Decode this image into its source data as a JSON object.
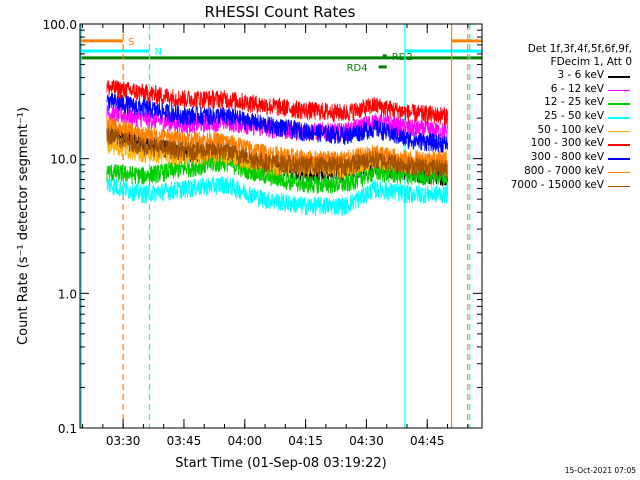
{
  "chart_data": {
    "type": "line",
    "title": "RHESSI Count Rates",
    "xlabel": "Start Time (01-Sep-08 03:19:22)",
    "ylabel": "Count Rate (s⁻¹ detector segment⁻¹)",
    "yscale": "log",
    "xlim": [
      "03:19:22",
      "04:58:30"
    ],
    "ylim": [
      0.1,
      100
    ],
    "x_ticks": [
      "03:30",
      "03:45",
      "04:00",
      "04:15",
      "04:30",
      "04:45"
    ],
    "y_ticks": [
      "0.1",
      "1.0",
      "10.0",
      "100.0"
    ],
    "data_start": "03:26:00",
    "data_end": "04:50:00",
    "series": [
      {
        "name": "3 - 6 keV",
        "color": "#000000",
        "points": [
          [
            "03:26",
            16
          ],
          [
            "03:35",
            13
          ],
          [
            "03:45",
            11
          ],
          [
            "03:55",
            11
          ],
          [
            "04:05",
            9
          ],
          [
            "04:15",
            8
          ],
          [
            "04:25",
            8
          ],
          [
            "04:32",
            9
          ],
          [
            "04:40",
            8
          ],
          [
            "04:49",
            7.5
          ]
        ]
      },
      {
        "name": "6 - 12 keV",
        "color": "#ff00ff",
        "points": [
          [
            "03:26",
            22
          ],
          [
            "03:35",
            20
          ],
          [
            "03:45",
            18
          ],
          [
            "03:55",
            19
          ],
          [
            "04:05",
            17
          ],
          [
            "04:15",
            16
          ],
          [
            "04:25",
            16
          ],
          [
            "04:32",
            19
          ],
          [
            "04:40",
            17
          ],
          [
            "04:49",
            16
          ]
        ]
      },
      {
        "name": "12 - 25 keV",
        "color": "#00cc00",
        "points": [
          [
            "03:26",
            8
          ],
          [
            "03:35",
            7.5
          ],
          [
            "03:45",
            8.5
          ],
          [
            "03:55",
            9.5
          ],
          [
            "04:05",
            7.5
          ],
          [
            "04:15",
            6.5
          ],
          [
            "04:25",
            6.5
          ],
          [
            "04:32",
            8
          ],
          [
            "04:40",
            7.5
          ],
          [
            "04:49",
            7.5
          ]
        ]
      },
      {
        "name": "25 - 50 keV",
        "color": "#00ffff",
        "points": [
          [
            "03:26",
            6.5
          ],
          [
            "03:35",
            5.5
          ],
          [
            "03:45",
            6
          ],
          [
            "03:55",
            6.5
          ],
          [
            "04:05",
            5
          ],
          [
            "04:15",
            4.5
          ],
          [
            "04:25",
            4.5
          ],
          [
            "04:32",
            6
          ],
          [
            "04:40",
            5.5
          ],
          [
            "04:49",
            5.5
          ]
        ]
      },
      {
        "name": "50 - 100 keV",
        "color": "#ffb000",
        "points": [
          [
            "03:26",
            13
          ],
          [
            "03:35",
            11
          ],
          [
            "03:45",
            10.5
          ],
          [
            "03:55",
            11
          ],
          [
            "04:05",
            9
          ],
          [
            "04:15",
            8.5
          ],
          [
            "04:25",
            8.5
          ],
          [
            "04:32",
            10
          ],
          [
            "04:40",
            9
          ],
          [
            "04:49",
            9
          ]
        ]
      },
      {
        "name": "100 - 300 keV",
        "color": "#ff0000",
        "points": [
          [
            "03:26",
            34
          ],
          [
            "03:35",
            31
          ],
          [
            "03:45",
            28
          ],
          [
            "03:55",
            28
          ],
          [
            "04:05",
            25
          ],
          [
            "04:15",
            23
          ],
          [
            "04:25",
            22
          ],
          [
            "04:32",
            25
          ],
          [
            "04:40",
            22
          ],
          [
            "04:49",
            21
          ]
        ]
      },
      {
        "name": "300 - 800 keV",
        "color": "#0000ff",
        "points": [
          [
            "03:26",
            27
          ],
          [
            "03:35",
            24
          ],
          [
            "03:45",
            21
          ],
          [
            "03:55",
            21
          ],
          [
            "04:05",
            18
          ],
          [
            "04:15",
            16
          ],
          [
            "04:25",
            15
          ],
          [
            "04:32",
            17
          ],
          [
            "04:40",
            14
          ],
          [
            "04:49",
            13
          ]
        ]
      },
      {
        "name": "800 - 7000 keV",
        "color": "#ff8000",
        "points": [
          [
            "03:26",
            18
          ],
          [
            "03:35",
            15
          ],
          [
            "03:45",
            14
          ],
          [
            "03:55",
            13.5
          ],
          [
            "04:05",
            11
          ],
          [
            "04:15",
            10
          ],
          [
            "04:25",
            10
          ],
          [
            "04:32",
            11
          ],
          [
            "04:40",
            10
          ],
          [
            "04:49",
            10
          ]
        ]
      },
      {
        "name": "7000 - 15000 keV",
        "color": "#a05000",
        "points": [
          [
            "03:26",
            15
          ],
          [
            "03:35",
            12.5
          ],
          [
            "03:45",
            11.5
          ],
          [
            "03:55",
            11.5
          ],
          [
            "04:05",
            9.5
          ],
          [
            "04:15",
            9
          ],
          [
            "04:25",
            9
          ],
          [
            "04:32",
            10
          ],
          [
            "04:40",
            9
          ],
          [
            "04:49",
            8.5
          ]
        ]
      }
    ],
    "flags": [
      {
        "label": "S",
        "color": "#ff8000",
        "start": "03:19:22",
        "end": "03:30:00",
        "level": 75
      },
      {
        "label": "N",
        "color": "#00ffff",
        "start": "03:19:22",
        "end": "03:36:30",
        "level": 63
      },
      {
        "label": "",
        "color": "#00ffff",
        "start": "04:39:30",
        "end": "04:58:30",
        "level": 63
      },
      {
        "label": "",
        "color": "#ff8000",
        "start": "04:51:00",
        "end": "04:58:30",
        "level": 75
      },
      {
        "label": "",
        "color": "#008000",
        "start": "03:19:22",
        "end": "04:58:30",
        "level": 56
      },
      {
        "label": "RD2",
        "color": "#008000",
        "start": "04:34:00",
        "end": "04:35:00",
        "level": 58
      },
      {
        "label": "RD4",
        "color": "#008000",
        "start": "04:33:00",
        "end": "04:35:00",
        "level": 48
      }
    ],
    "vlines": [
      {
        "time": "03:19:40",
        "color": "#00ffff",
        "style": "solid"
      },
      {
        "time": "03:30:00",
        "color": "#ff8000",
        "style": "dashed"
      },
      {
        "time": "03:36:30",
        "color": "#00ffff",
        "style": "dashed"
      },
      {
        "time": "04:39:30",
        "color": "#00ffff",
        "style": "solid"
      },
      {
        "time": "04:51:00",
        "color": "#ff8000",
        "style": "solid"
      },
      {
        "time": "04:55:00",
        "color": "#ff8000",
        "style": "dashed"
      },
      {
        "time": "04:55:30",
        "color": "#00ffff",
        "style": "dashed"
      }
    ],
    "legend_header": [
      "Det 1f,3f,4f,5f,6f,9f,",
      "FDecim 1, Att 0"
    ],
    "legend_placement": "right"
  },
  "timestamp": "15-Oct-2021 07:05"
}
